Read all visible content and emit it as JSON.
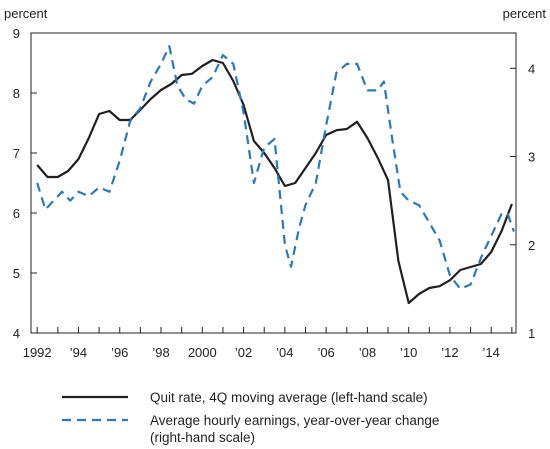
{
  "chart_data": {
    "type": "line",
    "left_axis": {
      "label": "percent",
      "ylim": [
        4,
        9
      ],
      "ticks": [
        "4",
        "5",
        "6",
        "7",
        "8",
        "9"
      ]
    },
    "right_axis": {
      "label": "percent",
      "ylim": [
        1,
        4.4
      ],
      "ticks": [
        "1",
        "2",
        "3",
        "4"
      ]
    },
    "x_axis": {
      "xlim": [
        1991.7,
        2015.2
      ],
      "ticks": [
        {
          "x": 1992,
          "label": "1992"
        },
        {
          "x": 1994,
          "label": "’94"
        },
        {
          "x": 1996,
          "label": "’96"
        },
        {
          "x": 1998,
          "label": "’98"
        },
        {
          "x": 2000,
          "label": "2000"
        },
        {
          "x": 2002,
          "label": "’02"
        },
        {
          "x": 2004,
          "label": "’04"
        },
        {
          "x": 2006,
          "label": "’06"
        },
        {
          "x": 2008,
          "label": "’08"
        },
        {
          "x": 2010,
          "label": "’10"
        },
        {
          "x": 2012,
          "label": "’12"
        },
        {
          "x": 2014,
          "label": "’14"
        }
      ]
    },
    "grid": false,
    "legend_position": "bottom",
    "series": [
      {
        "name": "Quit rate, 4Q moving average (left-hand scale)",
        "axis": "left",
        "color": "#231f20",
        "dash": "solid",
        "points": [
          [
            1992.0,
            6.8
          ],
          [
            1992.5,
            6.6
          ],
          [
            1993.0,
            6.6
          ],
          [
            1993.5,
            6.7
          ],
          [
            1994.0,
            6.9
          ],
          [
            1994.5,
            7.25
          ],
          [
            1995.0,
            7.65
          ],
          [
            1995.5,
            7.7
          ],
          [
            1996.0,
            7.55
          ],
          [
            1996.5,
            7.55
          ],
          [
            1997.0,
            7.72
          ],
          [
            1997.5,
            7.9
          ],
          [
            1998.0,
            8.05
          ],
          [
            1998.5,
            8.15
          ],
          [
            1999.0,
            8.3
          ],
          [
            1999.5,
            8.32
          ],
          [
            2000.0,
            8.45
          ],
          [
            2000.5,
            8.55
          ],
          [
            2001.0,
            8.5
          ],
          [
            2001.5,
            8.2
          ],
          [
            2002.0,
            7.8
          ],
          [
            2002.5,
            7.2
          ],
          [
            2003.0,
            7.0
          ],
          [
            2003.5,
            6.75
          ],
          [
            2004.0,
            6.45
          ],
          [
            2004.5,
            6.5
          ],
          [
            2005.0,
            6.75
          ],
          [
            2005.5,
            7.0
          ],
          [
            2006.0,
            7.3
          ],
          [
            2006.5,
            7.38
          ],
          [
            2007.0,
            7.4
          ],
          [
            2007.5,
            7.52
          ],
          [
            2008.0,
            7.25
          ],
          [
            2008.5,
            6.92
          ],
          [
            2009.0,
            6.55
          ],
          [
            2009.5,
            5.2
          ],
          [
            2010.0,
            4.5
          ],
          [
            2010.5,
            4.65
          ],
          [
            2011.0,
            4.75
          ],
          [
            2011.5,
            4.78
          ],
          [
            2012.0,
            4.88
          ],
          [
            2012.5,
            5.05
          ],
          [
            2013.0,
            5.1
          ],
          [
            2013.5,
            5.15
          ],
          [
            2014.0,
            5.35
          ],
          [
            2014.5,
            5.7
          ],
          [
            2015.0,
            6.15
          ]
        ]
      },
      {
        "name": "Average hourly earnings, year-over-year change\n(right-hand scale)",
        "axis": "right",
        "color": "#2a7ab8",
        "dash": "dashed",
        "points": [
          [
            1992.0,
            2.7
          ],
          [
            1992.4,
            2.4
          ],
          [
            1992.8,
            2.5
          ],
          [
            1993.2,
            2.6
          ],
          [
            1993.6,
            2.5
          ],
          [
            1994.0,
            2.6
          ],
          [
            1994.5,
            2.55
          ],
          [
            1995.0,
            2.65
          ],
          [
            1995.5,
            2.6
          ],
          [
            1996.0,
            2.95
          ],
          [
            1996.5,
            3.4
          ],
          [
            1997.0,
            3.55
          ],
          [
            1997.5,
            3.85
          ],
          [
            1998.0,
            4.05
          ],
          [
            1998.4,
            4.25
          ],
          [
            1998.8,
            3.8
          ],
          [
            1999.2,
            3.65
          ],
          [
            1999.6,
            3.6
          ],
          [
            2000.0,
            3.8
          ],
          [
            2000.5,
            3.9
          ],
          [
            2001.0,
            4.15
          ],
          [
            2001.5,
            4.05
          ],
          [
            2002.0,
            3.5
          ],
          [
            2002.5,
            2.7
          ],
          [
            2003.0,
            3.1
          ],
          [
            2003.5,
            3.2
          ],
          [
            2004.0,
            2.0
          ],
          [
            2004.3,
            1.75
          ],
          [
            2004.7,
            2.2
          ],
          [
            2005.0,
            2.45
          ],
          [
            2005.5,
            2.7
          ],
          [
            2006.0,
            3.35
          ],
          [
            2006.5,
            3.95
          ],
          [
            2007.0,
            4.05
          ],
          [
            2007.5,
            4.05
          ],
          [
            2008.0,
            3.75
          ],
          [
            2008.5,
            3.75
          ],
          [
            2008.8,
            3.85
          ],
          [
            2009.2,
            3.2
          ],
          [
            2009.6,
            2.6
          ],
          [
            2010.0,
            2.5
          ],
          [
            2010.5,
            2.45
          ],
          [
            2011.0,
            2.25
          ],
          [
            2011.5,
            2.05
          ],
          [
            2012.0,
            1.65
          ],
          [
            2012.5,
            1.5
          ],
          [
            2013.0,
            1.55
          ],
          [
            2013.5,
            1.85
          ],
          [
            2014.0,
            2.1
          ],
          [
            2014.5,
            2.35
          ],
          [
            2014.8,
            2.35
          ],
          [
            2015.1,
            2.15
          ]
        ]
      }
    ]
  }
}
